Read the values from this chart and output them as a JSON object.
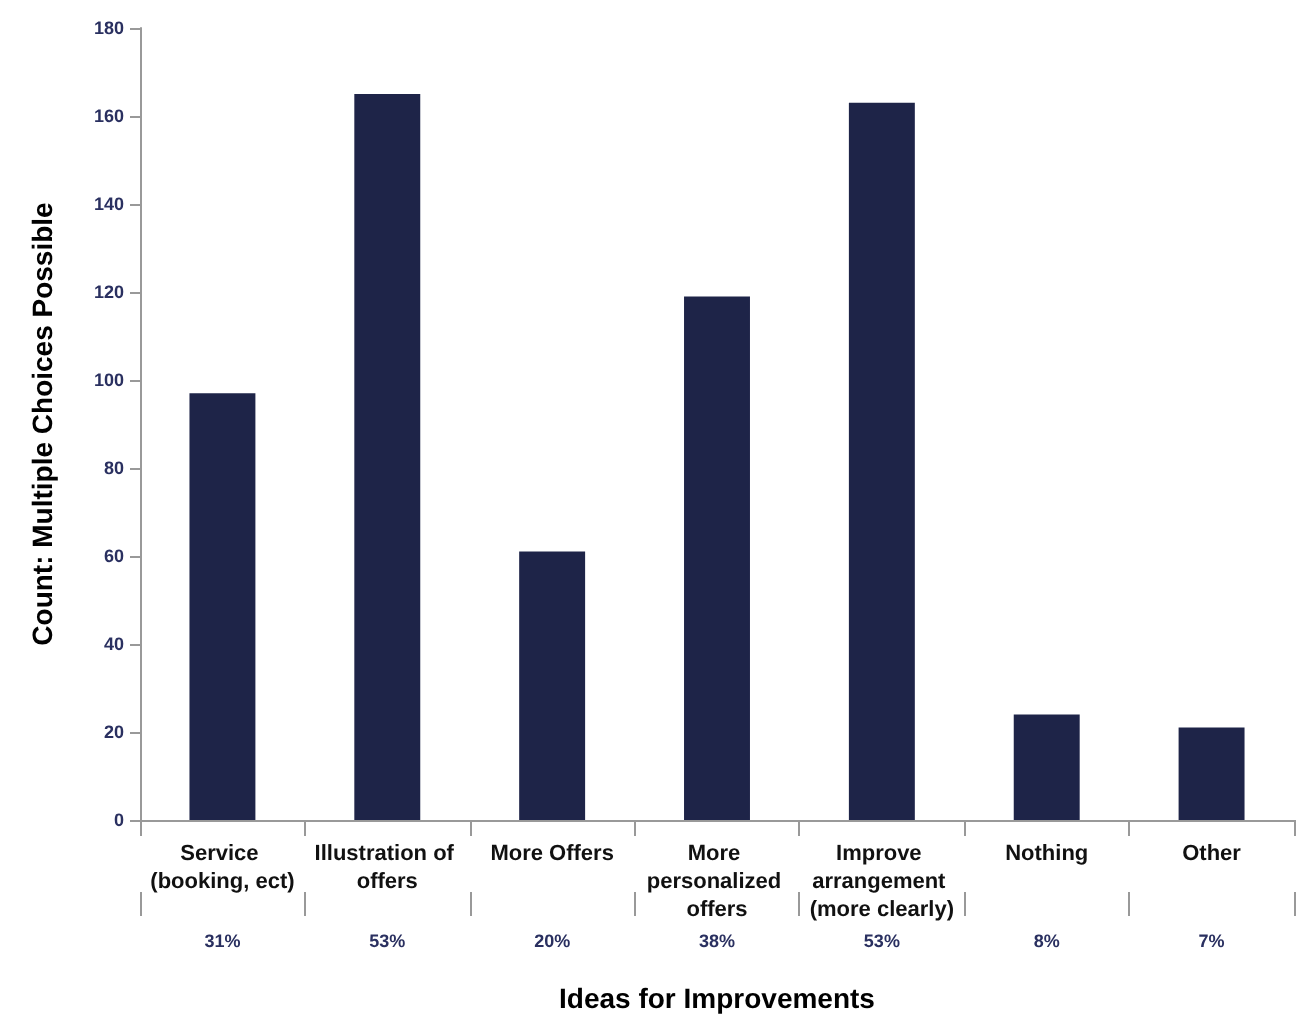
{
  "chart_data": {
    "type": "bar",
    "xlabel": "Ideas for Improvements",
    "ylabel": "Count: Multiple Choices Possible",
    "categories": [
      "Service (booking, ect)",
      "Illustration of offers",
      "More Offers",
      "More personalized offers",
      "Improve arrangement (more clearly)",
      "Nothing",
      "Other"
    ],
    "values": [
      97,
      165,
      61,
      119,
      163,
      24,
      21
    ],
    "annotations": [
      "31%",
      "53%",
      "20%",
      "38%",
      "53%",
      "8%",
      "7%"
    ],
    "color": "#1e2448",
    "ylim": [
      0,
      180
    ],
    "yticks": [
      0,
      20,
      40,
      60,
      80,
      100,
      120,
      140,
      160,
      180
    ],
    "grid": false
  }
}
